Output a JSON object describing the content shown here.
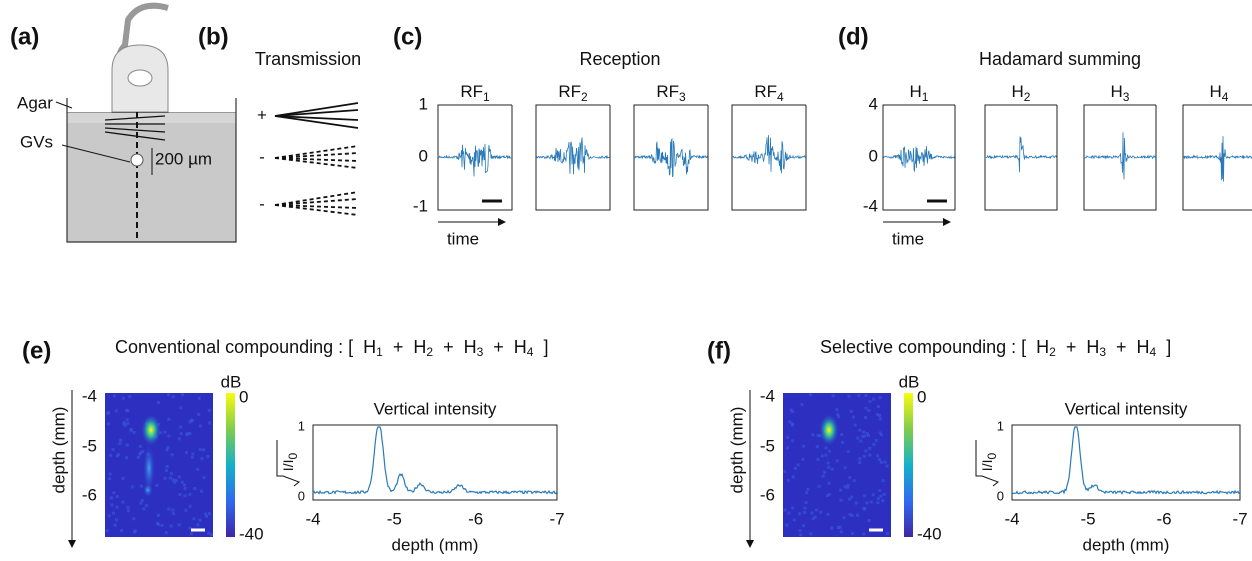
{
  "panels": {
    "a": {
      "label": "(a)",
      "agar": "Agar",
      "gvs": "GVs",
      "scale": "200 µm"
    },
    "b": {
      "label": "(b)",
      "title": "Transmission",
      "signs": [
        "+",
        "-",
        "-"
      ]
    },
    "c": {
      "label": "(c)",
      "title": "Reception",
      "plots": [
        {
          "base": "RF",
          "sub": "1"
        },
        {
          "base": "RF",
          "sub": "2"
        },
        {
          "base": "RF",
          "sub": "3"
        },
        {
          "base": "RF",
          "sub": "4"
        }
      ],
      "yticks": [
        "1",
        "0",
        "-1"
      ],
      "xlabel": "time"
    },
    "d": {
      "label": "(d)",
      "title": "Hadamard summing",
      "plots": [
        {
          "base": "H",
          "sub": "1"
        },
        {
          "base": "H",
          "sub": "2"
        },
        {
          "base": "H",
          "sub": "3"
        },
        {
          "base": "H",
          "sub": "4"
        }
      ],
      "yticks": [
        "4",
        "0",
        "-4"
      ],
      "xlabel": "time"
    },
    "e": {
      "label": "(e)",
      "prefix": "Conventional compounding : [",
      "terms": [
        {
          "base": "H",
          "sub": "1"
        },
        {
          "base": "H",
          "sub": "2"
        },
        {
          "base": "H",
          "sub": "3"
        },
        {
          "base": "H",
          "sub": "4"
        }
      ],
      "plus": "+",
      "suffix": "]",
      "image_ylabel": "depth (mm)",
      "image_yticks": [
        "-4",
        "-5",
        "-6"
      ],
      "colorbar_unit": "dB",
      "colorbar_ticks": [
        "0",
        "-40"
      ],
      "profile_title": "Vertical intensity",
      "profile_ylabel": {
        "base": "I/I",
        "sub": "0"
      },
      "profile_yticks": [
        "1",
        "0"
      ],
      "profile_xticks": [
        "-4",
        "-5",
        "-6",
        "-7"
      ],
      "profile_xlabel": "depth (mm)"
    },
    "f": {
      "label": "(f)",
      "prefix": "Selective compounding : [",
      "terms": [
        {
          "base": "H",
          "sub": "2"
        },
        {
          "base": "H",
          "sub": "3"
        },
        {
          "base": "H",
          "sub": "4"
        }
      ],
      "plus": "+",
      "suffix": "]",
      "image_ylabel": "depth (mm)",
      "image_yticks": [
        "-4",
        "-5",
        "-6"
      ],
      "colorbar_unit": "dB",
      "colorbar_ticks": [
        "0",
        "-40"
      ],
      "profile_title": "Vertical intensity",
      "profile_ylabel": {
        "base": "I/I",
        "sub": "0"
      },
      "profile_yticks": [
        "1",
        "0"
      ],
      "profile_xticks": [
        "-4",
        "-5",
        "-6",
        "-7"
      ],
      "profile_xlabel": "depth (mm)"
    }
  }
}
